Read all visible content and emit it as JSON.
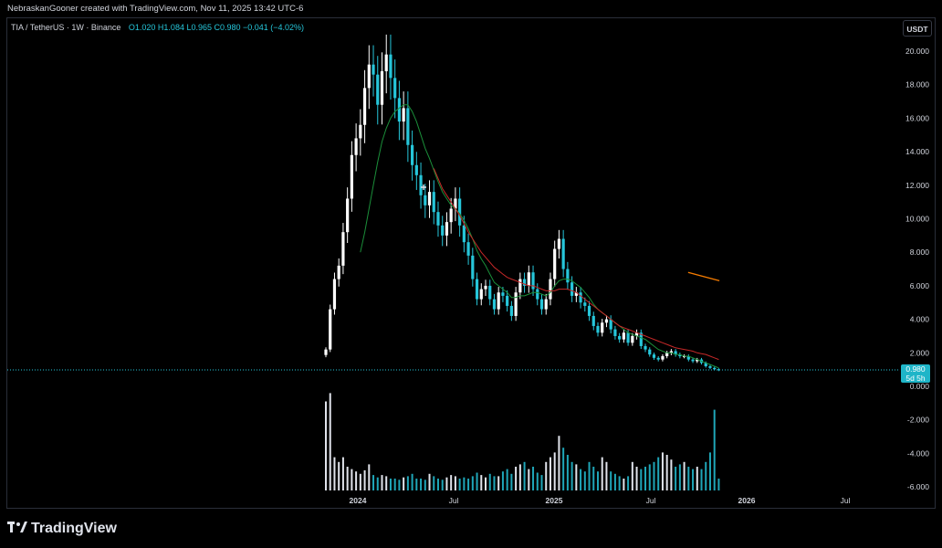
{
  "header": {
    "credit": "NebraskanGooner created with TradingView.com, Nov 11, 2025 13:42 UTC-6"
  },
  "legend": {
    "symbol": "TIA / TetherUS · 1W · Binance",
    "values": "O1.020 H1.084 L0.965 C0.980 −0.041 (−4.02%)"
  },
  "currency_button": "USDT",
  "price_tag": {
    "price": "0.980",
    "countdown": "5d 5h"
  },
  "watermark": "TradingView",
  "colors": {
    "up": "#ffffff",
    "down": "#26c6da",
    "ma_fast": "#1b8f3a",
    "ma_slow": "#c62828",
    "trend_line": "#f57c00",
    "price_line": "#26c6da"
  },
  "chart_data": {
    "type": "candlestick",
    "title": "TIA / TetherUS · 1W · Binance",
    "ylabel": "USDT",
    "ylim": [
      -6.3,
      21.0
    ],
    "y_ticks": [
      "20.000",
      "18.000",
      "16.000",
      "14.000",
      "12.000",
      "10.000",
      "8.000",
      "6.000",
      "4.000",
      "2.000",
      "0.000",
      "-2.000",
      "-4.000",
      "-6.000"
    ],
    "x_ticks": [
      "2024",
      "Jul",
      "2025",
      "Jul",
      "2026",
      "Jul"
    ],
    "last_price": 0.98,
    "weekly_closes": [
      2.2,
      4.6,
      6.4,
      7.2,
      9.2,
      11.2,
      13.8,
      14.8,
      15.6,
      17.8,
      19.2,
      18.6,
      16.8,
      18.8,
      19.8,
      18.4,
      17.2,
      15.8,
      16.6,
      14.4,
      13.2,
      12.6,
      11.4,
      10.8,
      11.6,
      10.4,
      9.6,
      9.0,
      9.8,
      10.6,
      11.2,
      9.6,
      8.6,
      7.8,
      6.4,
      5.2,
      5.8,
      6.0,
      5.2,
      4.6,
      5.6,
      5.4,
      4.8,
      4.2,
      5.6,
      6.4,
      6.0,
      6.8,
      5.8,
      5.2,
      4.6,
      5.2,
      6.4,
      8.2,
      8.8,
      7.0,
      6.2,
      5.4,
      5.6,
      5.0,
      4.8,
      4.2,
      3.6,
      3.2,
      3.8,
      4.0,
      3.4,
      3.0,
      2.8,
      3.2,
      2.6,
      3.0,
      3.2,
      2.4,
      2.2,
      1.9,
      1.7,
      1.6,
      1.8,
      2.0,
      2.1,
      1.9,
      1.8,
      1.8,
      1.6,
      1.5,
      1.6,
      1.4,
      1.2,
      1.1,
      1.02,
      0.98
    ],
    "ma_fast": [
      null,
      null,
      null,
      null,
      null,
      null,
      null,
      null,
      8.0,
      9.2,
      10.6,
      12.0,
      13.4,
      14.6,
      15.4,
      16.0,
      16.4,
      16.6,
      16.8,
      16.8,
      16.4,
      15.8,
      15.0,
      14.2,
      13.6,
      12.9,
      12.2,
      11.6,
      11.2,
      10.8,
      10.6,
      10.3,
      9.9,
      9.4,
      8.8,
      8.1,
      7.6,
      7.2,
      6.7,
      6.2,
      6.0,
      5.8,
      5.6,
      5.3,
      5.3,
      5.4,
      5.4,
      5.5,
      5.6,
      5.6,
      5.5,
      5.4,
      5.6,
      6.0,
      6.3,
      6.4,
      6.4,
      6.3,
      6.1,
      5.9,
      5.6,
      5.3,
      4.9,
      4.6,
      4.4,
      4.2,
      4.0,
      3.8,
      3.6,
      3.4,
      3.2,
      3.1,
      3.0,
      2.9,
      2.8,
      2.6,
      2.4,
      2.2,
      2.1,
      2.0,
      2.0,
      1.9,
      1.9,
      1.8,
      1.8,
      1.7,
      1.6,
      1.5,
      1.4,
      1.3,
      1.2,
      1.1
    ],
    "ma_slow": [
      null,
      null,
      null,
      null,
      null,
      null,
      null,
      null,
      null,
      null,
      null,
      null,
      null,
      null,
      null,
      null,
      null,
      null,
      null,
      null,
      null,
      null,
      null,
      null,
      null,
      13.0,
      12.4,
      11.8,
      11.4,
      11.0,
      10.6,
      10.2,
      9.7,
      9.2,
      8.8,
      8.4,
      8.0,
      7.7,
      7.4,
      7.1,
      6.9,
      6.7,
      6.5,
      6.4,
      6.3,
      6.2,
      6.1,
      6.0,
      6.0,
      5.9,
      5.8,
      5.7,
      5.7,
      5.7,
      5.8,
      5.8,
      5.8,
      5.7,
      5.6,
      5.4,
      5.2,
      5.0,
      4.8,
      4.6,
      4.4,
      4.2,
      4.0,
      3.8,
      3.6,
      3.5,
      3.4,
      3.3,
      3.2,
      3.1,
      3.0,
      2.9,
      2.8,
      2.7,
      2.6,
      2.5,
      2.4,
      2.3,
      2.25,
      2.2,
      2.15,
      2.1,
      2.0,
      1.95,
      1.9,
      1.8,
      1.7,
      1.6
    ],
    "volume_relative": [
      0.75,
      0.82,
      0.28,
      0.24,
      0.28,
      0.2,
      0.18,
      0.16,
      0.14,
      0.17,
      0.22,
      0.13,
      0.11,
      0.13,
      0.12,
      0.1,
      0.1,
      0.09,
      0.11,
      0.12,
      0.14,
      0.1,
      0.1,
      0.09,
      0.14,
      0.12,
      0.1,
      0.09,
      0.11,
      0.13,
      0.12,
      0.1,
      0.11,
      0.1,
      0.12,
      0.15,
      0.13,
      0.11,
      0.14,
      0.12,
      0.12,
      0.16,
      0.18,
      0.14,
      0.2,
      0.22,
      0.24,
      0.18,
      0.2,
      0.15,
      0.13,
      0.24,
      0.28,
      0.32,
      0.46,
      0.36,
      0.3,
      0.24,
      0.22,
      0.18,
      0.16,
      0.24,
      0.2,
      0.16,
      0.28,
      0.24,
      0.16,
      0.14,
      0.12,
      0.1,
      0.12,
      0.24,
      0.2,
      0.18,
      0.2,
      0.22,
      0.24,
      0.28,
      0.32,
      0.3,
      0.26,
      0.2,
      0.22,
      0.24,
      0.2,
      0.18,
      0.2,
      0.18,
      0.24,
      0.32,
      0.68,
      0.1
    ],
    "trend_line": [
      [
        0.84,
        6.8
      ],
      [
        0.91,
        6.3
      ]
    ]
  }
}
